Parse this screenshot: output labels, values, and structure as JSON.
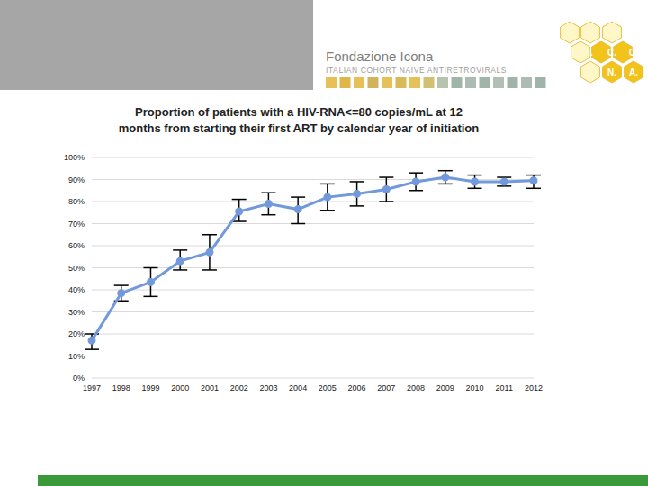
{
  "header": {
    "title": "Fondazione Icona",
    "subtitle": "ITALIAN COHORT NAIVE ANTIRETROVIRALS",
    "logo_letters": [
      "I.",
      "C.",
      "O.",
      "N.",
      "A."
    ]
  },
  "chart_data": {
    "type": "line",
    "title": "Proportion of patients with a HIV-RNA<=80 copies/mL at 12 months from starting their first ART by calendar year of initiation",
    "categories": [
      "1997",
      "1998",
      "1999",
      "2000",
      "2001",
      "2002",
      "2003",
      "2004",
      "2005",
      "2006",
      "2007",
      "2008",
      "2009",
      "2010",
      "2011",
      "2012"
    ],
    "values": [
      17,
      38.5,
      43.5,
      53,
      57,
      75.5,
      79,
      76.5,
      82,
      83.5,
      85.5,
      89,
      91,
      89,
      89,
      89.5
    ],
    "error_low": [
      13,
      35,
      37,
      49,
      49,
      71,
      74,
      70,
      76,
      78,
      80,
      85,
      88,
      86,
      87,
      86
    ],
    "error_high": [
      20,
      42,
      50,
      58,
      65,
      81,
      84,
      82,
      88,
      89,
      91,
      93,
      94,
      92,
      91,
      92
    ],
    "color": "#7199dc",
    "marker": "circle",
    "ylim": [
      0,
      100
    ],
    "yticks": [
      {
        "value": 0,
        "label": "0%"
      },
      {
        "value": 10,
        "label": "10%"
      },
      {
        "value": 20,
        "label": "20%"
      },
      {
        "value": 30,
        "label": "30%"
      },
      {
        "value": 40,
        "label": "40%"
      },
      {
        "value": 50,
        "label": "50%"
      },
      {
        "value": 60,
        "label": "60%"
      },
      {
        "value": 70,
        "label": "70%"
      },
      {
        "value": 80,
        "label": "80%"
      },
      {
        "value": 90,
        "label": "90%"
      },
      {
        "value": 100,
        "label": "100%"
      }
    ],
    "grid": true
  }
}
